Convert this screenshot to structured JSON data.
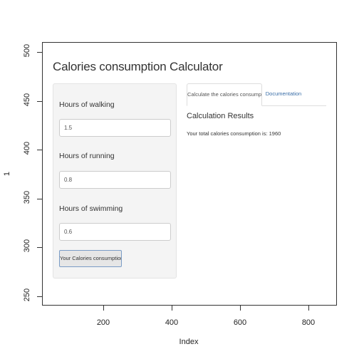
{
  "app": {
    "title": "Calories consumption Calculator"
  },
  "sidebar": {
    "fields": [
      {
        "label": "Hours of walking",
        "value": "1.5"
      },
      {
        "label": "Hours of running",
        "value": "0.8"
      },
      {
        "label": "Hours of swimming",
        "value": "0.6"
      }
    ],
    "submit_label": "Your Calories consumption is"
  },
  "tabs": [
    {
      "label": "Calculate the calories consumption",
      "active": true
    },
    {
      "label": "Documentation",
      "active": false
    }
  ],
  "results": {
    "heading": "Calculation Results",
    "text": "Your total calories consumption is: 1960"
  },
  "plot_axes": {
    "xlabel": "Index",
    "ylabel": "1",
    "xticks": [
      "200",
      "400",
      "600",
      "800"
    ],
    "yticks": [
      "250",
      "300",
      "350",
      "400",
      "450",
      "500"
    ]
  },
  "colors": {
    "link": "#3a6ea8",
    "panel_bg": "#f4f4f4",
    "button_border": "#7a9cc6"
  }
}
